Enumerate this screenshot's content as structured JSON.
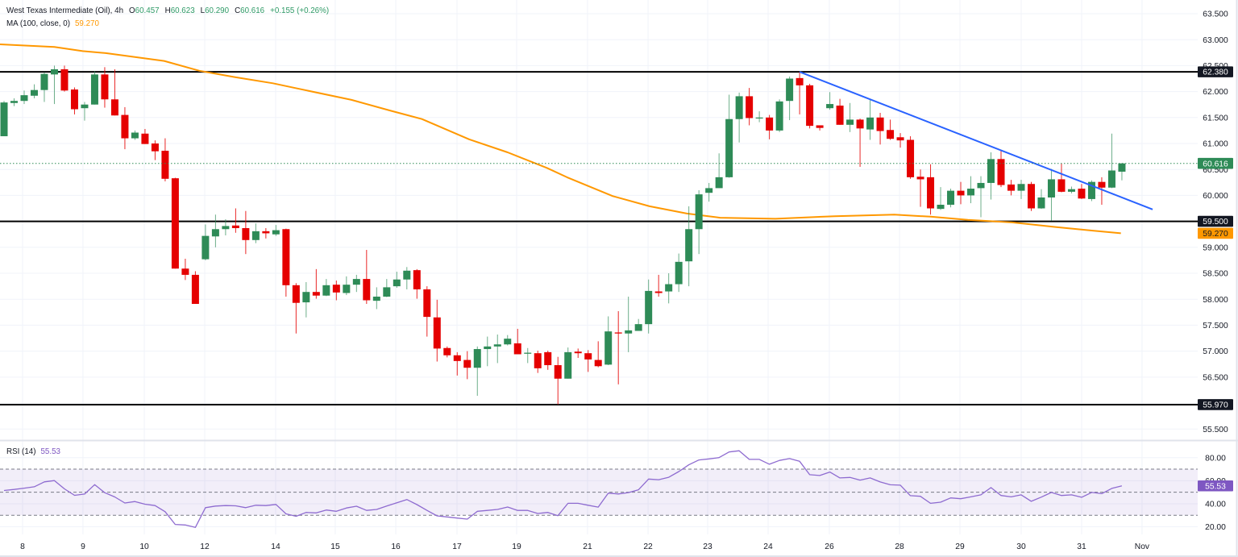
{
  "header": {
    "symbol": "West Texas Intermediate (Oil), 4h",
    "open": {
      "key": "O",
      "value": "60.457"
    },
    "high": {
      "key": "H",
      "value": "60.623"
    },
    "low": {
      "key": "L",
      "value": "60.290"
    },
    "close": {
      "key": "C",
      "value": "60.616"
    },
    "change": "+0.155 (+0.26%)",
    "ma_label": "MA (100, close, 0)",
    "ma_value": "59.270"
  },
  "rsi_legend": {
    "label": "RSI (14)",
    "value": "55.53"
  },
  "colors": {
    "up": "#2e8b57",
    "down": "#e50000",
    "ma": "#ff9800",
    "trendline": "#2962ff",
    "level": "#000000",
    "level_label_bg": "#131722",
    "last_price": "#2e8b57",
    "rsi_line": "#8e6bd0",
    "rsi_label_bg": "#7e57c2",
    "rsi_band": "rgba(126,87,194,0.10)",
    "grid": "#f0f3fa",
    "separator": "#e0e3eb",
    "axis_text": "#131722"
  },
  "chart_data": {
    "type": "candlestick",
    "title": "West Texas Intermediate (Oil), 4h",
    "interval": "4h",
    "ylim": [
      55.286,
      63.764
    ],
    "price_axis": {
      "ticks": [
        "63.500",
        "63.000",
        "62.500",
        "62.000",
        "61.500",
        "61.000",
        "60.500",
        "60.000",
        "59.500",
        "59.000",
        "58.500",
        "58.000",
        "57.500",
        "57.000",
        "56.500",
        "56.000",
        "55.500"
      ]
    },
    "x_ticks": [
      {
        "label": "8",
        "index": 1.84
      },
      {
        "label": "9",
        "index": 7.84
      },
      {
        "label": "10",
        "index": 13.93
      },
      {
        "label": "12",
        "index": 19.93
      },
      {
        "label": "14",
        "index": 26.97
      },
      {
        "label": "15",
        "index": 32.89
      },
      {
        "label": "16",
        "index": 38.9
      },
      {
        "label": "17",
        "index": 44.98
      },
      {
        "label": "19",
        "index": 50.9
      },
      {
        "label": "21",
        "index": 57.94
      },
      {
        "label": "22",
        "index": 63.95
      },
      {
        "label": "23",
        "index": 69.87
      },
      {
        "label": "24",
        "index": 75.87
      },
      {
        "label": "26",
        "index": 81.95
      },
      {
        "label": "28",
        "index": 88.92
      },
      {
        "label": "29",
        "index": 94.92
      },
      {
        "label": "30",
        "index": 101.0
      },
      {
        "label": "31",
        "index": 107.0
      },
      {
        "label": "Nov",
        "index": 113.0
      }
    ],
    "candles_format": "[open, high, low, close]",
    "candles": [
      [
        61.14,
        61.82,
        61.14,
        61.79
      ],
      [
        61.78,
        61.87,
        61.72,
        61.82
      ],
      [
        61.82,
        62.02,
        61.76,
        61.93
      ],
      [
        61.92,
        62.14,
        61.87,
        62.03
      ],
      [
        62.03,
        62.37,
        61.8,
        62.34
      ],
      [
        62.33,
        62.5,
        61.76,
        62.43
      ],
      [
        62.43,
        62.5,
        62.0,
        62.02
      ],
      [
        62.04,
        62.08,
        61.56,
        61.66
      ],
      [
        61.68,
        61.8,
        61.44,
        61.75
      ],
      [
        61.75,
        62.39,
        61.75,
        62.33
      ],
      [
        62.33,
        62.47,
        61.69,
        61.85
      ],
      [
        61.85,
        62.43,
        61.54,
        61.54
      ],
      [
        61.55,
        61.7,
        60.89,
        61.1
      ],
      [
        61.1,
        61.25,
        61.07,
        61.21
      ],
      [
        61.19,
        61.28,
        60.99,
        60.99
      ],
      [
        61.0,
        61.06,
        60.68,
        60.85
      ],
      [
        60.86,
        61.1,
        60.27,
        60.32
      ],
      [
        60.33,
        60.34,
        58.59,
        58.59
      ],
      [
        58.59,
        58.78,
        58.37,
        58.47
      ],
      [
        58.47,
        58.54,
        57.91,
        57.91
      ],
      [
        58.77,
        59.44,
        58.75,
        59.22
      ],
      [
        59.21,
        59.63,
        59.0,
        59.35
      ],
      [
        59.35,
        59.54,
        59.23,
        59.41
      ],
      [
        59.42,
        59.75,
        59.28,
        59.37
      ],
      [
        59.37,
        59.7,
        58.87,
        59.14
      ],
      [
        59.14,
        59.46,
        59.08,
        59.31
      ],
      [
        59.31,
        59.37,
        59.17,
        59.27
      ],
      [
        59.25,
        59.43,
        59.22,
        59.33
      ],
      [
        59.35,
        59.36,
        58.05,
        58.27
      ],
      [
        58.27,
        58.31,
        57.34,
        57.93
      ],
      [
        57.94,
        58.33,
        57.65,
        58.14
      ],
      [
        58.14,
        58.58,
        58.01,
        58.07
      ],
      [
        58.07,
        58.39,
        58.06,
        58.27
      ],
      [
        58.28,
        58.36,
        57.98,
        58.13
      ],
      [
        58.12,
        58.44,
        58.08,
        58.28
      ],
      [
        58.28,
        58.47,
        58.14,
        58.39
      ],
      [
        58.39,
        58.95,
        57.91,
        57.98
      ],
      [
        57.97,
        58.23,
        57.81,
        58.05
      ],
      [
        58.05,
        58.39,
        58.04,
        58.23
      ],
      [
        58.25,
        58.53,
        58.22,
        58.38
      ],
      [
        58.38,
        58.62,
        58.19,
        58.55
      ],
      [
        58.56,
        58.58,
        58.01,
        58.19
      ],
      [
        58.19,
        58.25,
        57.28,
        57.66
      ],
      [
        57.65,
        57.99,
        56.8,
        57.05
      ],
      [
        57.06,
        57.09,
        56.88,
        56.92
      ],
      [
        56.92,
        56.98,
        56.53,
        56.81
      ],
      [
        56.83,
        57.0,
        56.46,
        56.68
      ],
      [
        56.68,
        57.09,
        56.14,
        57.04
      ],
      [
        57.04,
        57.28,
        56.71,
        57.09
      ],
      [
        57.09,
        57.32,
        56.77,
        57.13
      ],
      [
        57.13,
        57.31,
        57.11,
        57.24
      ],
      [
        57.15,
        57.43,
        56.94,
        56.94
      ],
      [
        56.95,
        57.06,
        56.77,
        56.97
      ],
      [
        56.96,
        57.01,
        56.58,
        56.67
      ],
      [
        56.98,
        57.01,
        56.64,
        56.73
      ],
      [
        56.73,
        56.89,
        55.97,
        56.47
      ],
      [
        56.47,
        57.07,
        56.47,
        56.98
      ],
      [
        56.99,
        57.05,
        56.87,
        56.96
      ],
      [
        56.96,
        57.02,
        56.6,
        56.84
      ],
      [
        56.83,
        57.19,
        56.69,
        56.71
      ],
      [
        56.74,
        57.67,
        56.73,
        57.38
      ],
      [
        57.36,
        57.77,
        56.36,
        57.34
      ],
      [
        57.34,
        58.05,
        56.98,
        57.4
      ],
      [
        57.39,
        57.62,
        57.39,
        57.52
      ],
      [
        57.52,
        58.38,
        57.34,
        58.16
      ],
      [
        58.15,
        58.47,
        58.05,
        58.12
      ],
      [
        58.15,
        58.5,
        57.92,
        58.29
      ],
      [
        58.29,
        58.88,
        58.14,
        58.72
      ],
      [
        58.73,
        59.79,
        58.25,
        59.35
      ],
      [
        59.35,
        60.1,
        58.87,
        60.02
      ],
      [
        60.05,
        60.24,
        59.88,
        60.14
      ],
      [
        60.14,
        60.81,
        60.14,
        60.35
      ],
      [
        60.35,
        61.94,
        60.34,
        61.47
      ],
      [
        61.47,
        61.98,
        61.02,
        61.91
      ],
      [
        61.91,
        62.07,
        61.35,
        61.49
      ],
      [
        61.49,
        61.62,
        61.41,
        61.5
      ],
      [
        61.5,
        61.55,
        61.08,
        61.25
      ],
      [
        61.25,
        61.85,
        61.22,
        61.81
      ],
      [
        61.82,
        62.29,
        61.45,
        62.25
      ],
      [
        62.26,
        62.38,
        61.56,
        62.12
      ],
      [
        62.12,
        62.15,
        61.29,
        61.34
      ],
      [
        61.35,
        61.35,
        61.25,
        61.3
      ],
      [
        61.68,
        61.99,
        61.65,
        61.76
      ],
      [
        61.73,
        61.86,
        61.36,
        61.36
      ],
      [
        61.36,
        61.78,
        61.22,
        61.46
      ],
      [
        61.46,
        61.48,
        60.55,
        61.29
      ],
      [
        61.27,
        61.85,
        61.07,
        61.5
      ],
      [
        61.5,
        61.59,
        60.98,
        61.24
      ],
      [
        61.26,
        61.46,
        61.07,
        61.09
      ],
      [
        61.12,
        61.2,
        60.92,
        61.06
      ],
      [
        61.07,
        61.14,
        60.32,
        60.35
      ],
      [
        60.36,
        60.5,
        59.78,
        60.31
      ],
      [
        60.35,
        60.6,
        59.63,
        59.75
      ],
      [
        59.74,
        60.16,
        59.72,
        59.82
      ],
      [
        59.82,
        60.13,
        59.77,
        60.09
      ],
      [
        60.09,
        60.26,
        59.83,
        60.0
      ],
      [
        60.0,
        60.37,
        59.85,
        60.13
      ],
      [
        60.14,
        60.37,
        59.58,
        60.24
      ],
      [
        60.24,
        60.83,
        59.92,
        60.7
      ],
      [
        60.7,
        60.86,
        60.16,
        60.2
      ],
      [
        60.21,
        60.3,
        60.0,
        60.09
      ],
      [
        60.09,
        60.3,
        59.93,
        60.22
      ],
      [
        60.22,
        60.26,
        59.7,
        59.75
      ],
      [
        59.75,
        60.12,
        59.74,
        59.96
      ],
      [
        59.96,
        60.51,
        59.51,
        60.31
      ],
      [
        60.31,
        60.62,
        60.06,
        60.07
      ],
      [
        60.07,
        60.17,
        60.04,
        60.12
      ],
      [
        60.13,
        60.22,
        59.93,
        59.94
      ],
      [
        59.93,
        60.29,
        59.89,
        60.26
      ],
      [
        60.26,
        60.35,
        59.82,
        60.15
      ],
      [
        60.15,
        61.19,
        60.14,
        60.48
      ],
      [
        60.457,
        60.623,
        60.29,
        60.616
      ]
    ],
    "last_price": {
      "value": 60.616,
      "label": "60.616"
    },
    "levels": [
      {
        "value": 62.38,
        "label": "62.380"
      },
      {
        "value": 59.5,
        "label": "59.500"
      },
      {
        "value": 55.97,
        "label": "55.970"
      }
    ],
    "trendline": {
      "from": [
        79,
        62.38
      ],
      "to": [
        114.05,
        59.73
      ]
    },
    "moving_average": {
      "name": "MA (100, close, 0)",
      "last": 59.27,
      "label": "59.270",
      "points": [
        [
          -0.4,
          62.91
        ],
        [
          5.0,
          62.86
        ],
        [
          7.8,
          62.78
        ],
        [
          10.1,
          62.74
        ],
        [
          15.9,
          62.59
        ],
        [
          19.4,
          62.4
        ],
        [
          22.9,
          62.28
        ],
        [
          26.7,
          62.16
        ],
        [
          29.1,
          62.06
        ],
        [
          34.5,
          61.84
        ],
        [
          38.4,
          61.63
        ],
        [
          41.5,
          61.47
        ],
        [
          46.2,
          61.08
        ],
        [
          50.0,
          60.83
        ],
        [
          53.9,
          60.53
        ],
        [
          55.9,
          60.35
        ],
        [
          60.4,
          59.99
        ],
        [
          64.1,
          59.79
        ],
        [
          67.8,
          59.65
        ],
        [
          71.1,
          59.57
        ],
        [
          76.6,
          59.55
        ],
        [
          82.5,
          59.6
        ],
        [
          88.4,
          59.63
        ],
        [
          92.0,
          59.59
        ],
        [
          95.7,
          59.53
        ],
        [
          100.1,
          59.48
        ],
        [
          104.5,
          59.39
        ],
        [
          108.2,
          59.32
        ],
        [
          110.9,
          59.27
        ]
      ]
    },
    "rsi": {
      "name": "RSI (14)",
      "last": 55.53,
      "label": "55.53",
      "ylim": [
        13.4,
        94.5
      ],
      "ticks": [
        "80.00",
        "60.00",
        "40.00",
        "20.00"
      ],
      "levels": [
        70,
        50,
        30
      ],
      "band": [
        30,
        70
      ],
      "values": [
        51.5,
        52.4,
        53.5,
        54.7,
        59.0,
        60.1,
        52.9,
        47.3,
        48.4,
        56.6,
        49.6,
        45.9,
        40.7,
        41.9,
        39.6,
        38.4,
        33.1,
        22.1,
        21.6,
        19.5,
        36.6,
        38.0,
        38.4,
        38.2,
        36.6,
        38.7,
        38.4,
        39.4,
        31.2,
        29.1,
        32.5,
        32.1,
        34.6,
        33.5,
        36.3,
        37.9,
        34.2,
        35.1,
        38.1,
        40.9,
        43.7,
        39.3,
        34.2,
        29.5,
        28.6,
        27.6,
        26.7,
        33.5,
        34.2,
        35.1,
        37.2,
        34.2,
        34.2,
        31.6,
        32.5,
        29.7,
        40.4,
        40.4,
        38.7,
        37.1,
        49.2,
        48.5,
        49.7,
        52.1,
        61.4,
        60.9,
        63.0,
        67.9,
        73.8,
        78.0,
        78.9,
        80.0,
        84.9,
        86.0,
        78.5,
        78.5,
        74.3,
        77.6,
        79.2,
        76.8,
        65.2,
        64.5,
        67.5,
        62.4,
        62.8,
        60.5,
        62.4,
        58.9,
        56.5,
        56.1,
        47.0,
        46.5,
        40.4,
        41.4,
        45.1,
        44.4,
        46.0,
        47.7,
        54.0,
        47.2,
        46.0,
        47.7,
        42.1,
        45.8,
        49.8,
        47.2,
        47.7,
        45.6,
        49.8,
        48.8,
        53.3,
        55.5
      ]
    },
    "grid": true
  }
}
